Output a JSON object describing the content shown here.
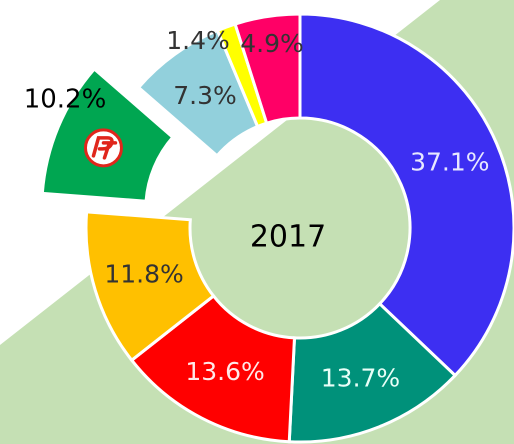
{
  "chart_data": {
    "type": "donut",
    "title": "2017",
    "values": [
      37.1,
      13.7,
      13.6,
      11.8,
      10.2,
      7.3,
      1.4,
      4.9
    ],
    "value_labels": [
      "37.1%",
      "13.7%",
      "13.6%",
      "11.8%",
      "10.2%",
      "7.3%",
      "1.4%",
      "4.9%"
    ],
    "colors": [
      "#3d2ff2",
      "#00917a",
      "#ff0000",
      "#ffc000",
      "#00a651",
      "#92d0dc",
      "#ffff00",
      "#ff0066"
    ],
    "exploded": 4
  }
}
